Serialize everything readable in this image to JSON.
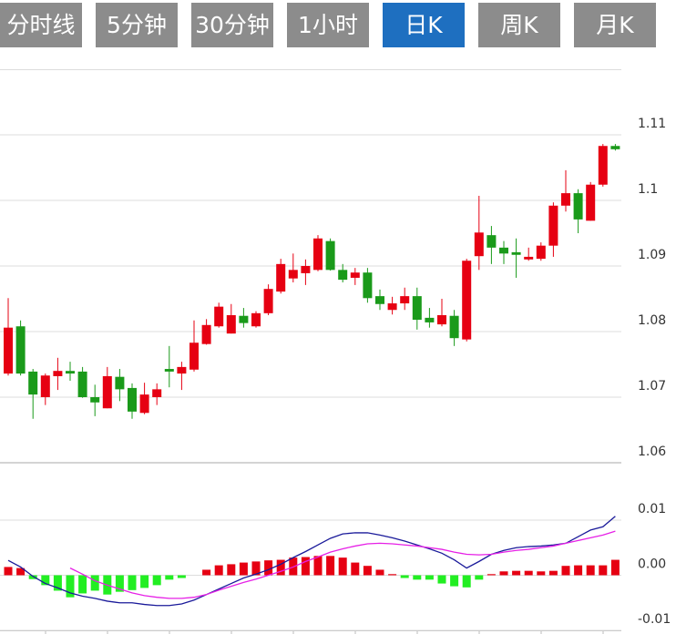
{
  "tabs": [
    {
      "label": "分时线",
      "active": false
    },
    {
      "label": "5分钟",
      "active": false
    },
    {
      "label": "30分钟",
      "active": false
    },
    {
      "label": "1小时",
      "active": false
    },
    {
      "label": "日K",
      "active": true
    },
    {
      "label": "周K",
      "active": false
    },
    {
      "label": "月K",
      "active": false
    }
  ],
  "chart_data": [
    {
      "type": "candlestick",
      "up_color": "#e60012",
      "down_color": "#1a9a1a",
      "grid": true,
      "ylim": [
        1.06,
        1.12
      ],
      "yticks": [
        1.06,
        1.07,
        1.08,
        1.09,
        1.1,
        1.11
      ],
      "open": [
        1.0736,
        1.0808,
        1.0739,
        1.07,
        1.0732,
        1.074,
        1.0739,
        1.07,
        1.0683,
        1.0731,
        1.0714,
        1.0676,
        1.07,
        1.0743,
        1.0736,
        1.0742,
        1.0781,
        1.0808,
        1.0797,
        1.0824,
        1.0808,
        1.0828,
        1.0861,
        1.0881,
        1.0889,
        1.0894,
        1.0938,
        1.0894,
        1.0882,
        1.089,
        1.0854,
        1.0833,
        1.0843,
        1.0854,
        1.0821,
        1.0811,
        1.0824,
        1.0788,
        1.0915,
        1.0947,
        1.0928,
        1.0921,
        1.091,
        1.0911,
        1.0931,
        1.0992,
        1.1011,
        1.0969,
        1.1024,
        1.1083
      ],
      "high": [
        1.0851,
        1.0817,
        1.0743,
        1.0736,
        1.076,
        1.0754,
        1.0746,
        1.0719,
        1.0746,
        1.0743,
        1.0721,
        1.0722,
        1.0721,
        1.0778,
        1.0754,
        1.0817,
        1.0819,
        1.0844,
        1.0842,
        1.0836,
        1.0831,
        1.0872,
        1.0911,
        1.0919,
        1.091,
        1.0947,
        1.0942,
        1.0903,
        1.0897,
        1.0897,
        1.0864,
        1.0853,
        1.0867,
        1.0867,
        1.0836,
        1.085,
        1.0833,
        1.0911,
        1.1007,
        1.0961,
        1.0938,
        1.0942,
        1.0928,
        1.0936,
        1.0997,
        1.1046,
        1.1017,
        1.1028,
        1.1086,
        1.1086
      ],
      "low": [
        1.0733,
        1.0733,
        1.0667,
        1.0688,
        1.0711,
        1.0725,
        1.0699,
        1.0671,
        1.0683,
        1.0694,
        1.0667,
        1.0674,
        1.0688,
        1.0715,
        1.0711,
        1.0739,
        1.078,
        1.0806,
        1.0797,
        1.0806,
        1.0806,
        1.0825,
        1.0858,
        1.0875,
        1.0871,
        1.0892,
        1.0893,
        1.0875,
        1.0871,
        1.0844,
        1.0833,
        1.0826,
        1.0833,
        1.0803,
        1.0806,
        1.0808,
        1.0778,
        1.0785,
        1.0894,
        1.0903,
        1.0903,
        1.0882,
        1.0908,
        1.0908,
        1.0914,
        1.0983,
        1.095,
        1.0969,
        1.1021,
        1.1076
      ],
      "close": [
        1.0806,
        1.0736,
        1.0704,
        1.0733,
        1.074,
        1.0736,
        1.07,
        1.0692,
        1.0732,
        1.0712,
        1.0678,
        1.0704,
        1.0712,
        1.0739,
        1.0746,
        1.0783,
        1.081,
        1.0838,
        1.0825,
        1.0813,
        1.0828,
        1.0865,
        1.0903,
        1.0894,
        1.09,
        1.0942,
        1.0894,
        1.0879,
        1.089,
        1.0851,
        1.0842,
        1.0843,
        1.0854,
        1.0818,
        1.0814,
        1.0825,
        1.079,
        1.0908,
        1.0951,
        1.0928,
        1.0919,
        1.0917,
        1.0914,
        1.0931,
        1.0992,
        1.1011,
        1.0971,
        1.1024,
        1.1083,
        1.1078
      ]
    },
    {
      "type": "macd",
      "up_color": "#e60012",
      "down_color": "#22ee22",
      "grid": true,
      "ylim": [
        -0.01,
        0.01
      ],
      "yticks": [
        -0.01,
        {
          "value": 0,
          "label": "0.00"
        },
        0.01
      ],
      "histogram": [
        0.0015,
        0.0013,
        -0.0007,
        -0.0018,
        -0.0028,
        -0.004,
        -0.0033,
        -0.0028,
        -0.0035,
        -0.003,
        -0.0027,
        -0.0023,
        -0.0018,
        -0.0008,
        -0.0005,
        0,
        0.001,
        0.0018,
        0.002,
        0.0023,
        0.0025,
        0.0027,
        0.0028,
        0.0032,
        0.0033,
        0.0035,
        0.0035,
        0.0032,
        0.0023,
        0.0017,
        0.001,
        0.0002,
        -0.0005,
        -0.0008,
        -0.0008,
        -0.0015,
        -0.002,
        -0.0022,
        -0.0008,
        0.0002,
        0.0007,
        0.0008,
        0.0008,
        0.0007,
        0.0008,
        0.0017,
        0.0018,
        0.0018,
        0.0018,
        0.0028
      ],
      "series": [
        {
          "color": "#1a1a9a",
          "values": [
            0.0027,
            0.0015,
            -0.0002,
            -0.0015,
            -0.0023,
            -0.0032,
            -0.0038,
            -0.0042,
            -0.0047,
            -0.005,
            -0.005,
            -0.0053,
            -0.0055,
            -0.0055,
            -0.0052,
            -0.0045,
            -0.0035,
            -0.0025,
            -0.0015,
            -0.0005,
            0.0002,
            0.001,
            0.002,
            0.0032,
            0.0043,
            0.0055,
            0.0067,
            0.0075,
            0.0077,
            0.0077,
            0.0073,
            0.0068,
            0.0062,
            0.0055,
            0.0048,
            0.004,
            0.0028,
            0.0013,
            0.0025,
            0.0038,
            0.0045,
            0.005,
            0.0052,
            0.0053,
            0.0055,
            0.0058,
            0.007,
            0.0082,
            0.0088,
            0.0107
          ]
        },
        {
          "color": "#e620e6",
          "values": [
            null,
            null,
            null,
            null,
            null,
            0.0013,
            0.0002,
            -0.001,
            -0.0018,
            -0.0025,
            -0.0032,
            -0.0037,
            -0.004,
            -0.0042,
            -0.0042,
            -0.004,
            -0.0035,
            -0.0027,
            -0.002,
            -0.0013,
            -0.0007,
            0,
            0.0007,
            0.0015,
            0.0025,
            0.0033,
            0.0042,
            0.0048,
            0.0053,
            0.0057,
            0.0058,
            0.0057,
            0.0055,
            0.0053,
            0.005,
            0.0047,
            0.0042,
            0.0038,
            0.0037,
            0.0038,
            0.0042,
            0.0045,
            0.0047,
            0.005,
            0.0053,
            0.0058,
            0.0063,
            0.0068,
            0.0073,
            0.008
          ]
        }
      ]
    }
  ]
}
